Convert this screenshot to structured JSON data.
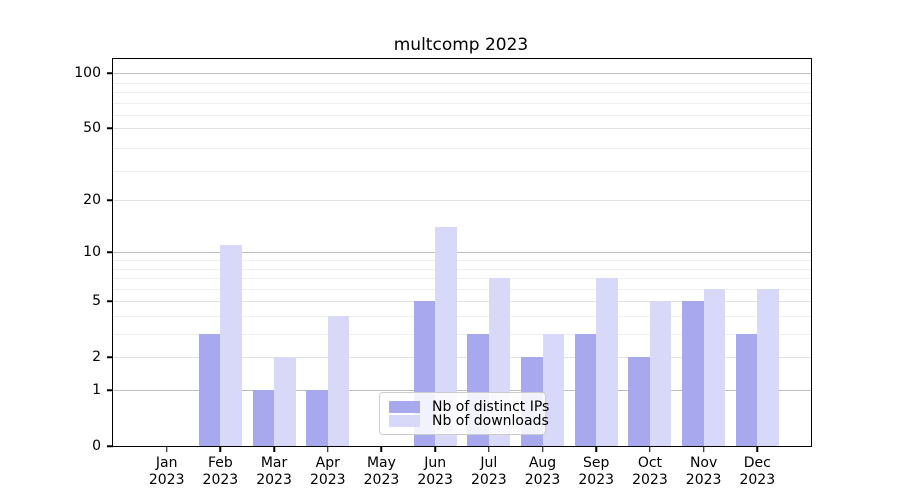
{
  "title": "multcomp 2023",
  "chart_data": {
    "type": "bar",
    "title": "multcomp 2023",
    "x_categories": [
      "Jan",
      "Feb",
      "Mar",
      "Apr",
      "May",
      "Jun",
      "Jul",
      "Aug",
      "Sep",
      "Oct",
      "Nov",
      "Dec"
    ],
    "x_year": "2023",
    "series": [
      {
        "name": "Nb of distinct IPs",
        "color": "#a8a8ef",
        "values": [
          0,
          3,
          1,
          1,
          0,
          5,
          3,
          2,
          3,
          2,
          5,
          3
        ]
      },
      {
        "name": "Nb of downloads",
        "color": "#d8d8f8",
        "values": [
          0,
          11,
          2,
          4,
          0,
          14,
          7,
          3,
          7,
          5,
          6,
          6
        ]
      }
    ],
    "y_scale": "log10(1+x)",
    "y_ticks": [
      0,
      1,
      2,
      5,
      10,
      20,
      50,
      100
    ],
    "y_gridlines_major": [
      1,
      10,
      100
    ],
    "y_gridlines_mid": [
      2,
      5,
      20,
      50
    ],
    "y_gridlines_minor": [
      3,
      4,
      6,
      7,
      8,
      9,
      29,
      39,
      59,
      69,
      79,
      89
    ],
    "ylim": [
      0,
      117
    ],
    "grid": "on",
    "legend_position": "lower center",
    "background_color": "#ffffff",
    "axis_color": "#000000"
  }
}
